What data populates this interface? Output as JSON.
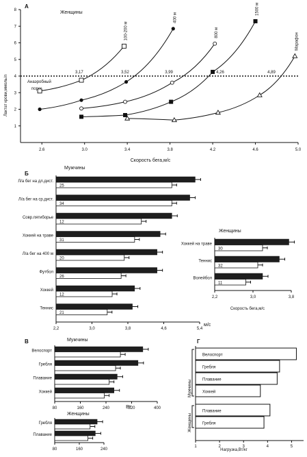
{
  "chart_data": [
    {
      "type": "line",
      "panel_letter": "A",
      "subtitle": "Женщины",
      "xlabel": "Скорость бега,м/с",
      "ylabel": "Лактат крови,ммоль/л",
      "x_ticks": [
        "2.6",
        "3.0",
        "3.4",
        "3.8",
        "4.2",
        "4.6",
        "5.0"
      ],
      "y_ticks": [
        "1",
        "2",
        "3",
        "4",
        "5",
        "6",
        "7",
        "8"
      ],
      "xlim": [
        2.4,
        5.0
      ],
      "ylim": [
        0,
        8
      ],
      "threshold": {
        "value": 4,
        "label_line1": "Анаэробный",
        "label_line2": "порог"
      },
      "threshold_labels": [
        {
          "x": 2.95,
          "text": "3,17"
        },
        {
          "x": 3.38,
          "text": "3,52"
        },
        {
          "x": 3.79,
          "text": "3,99"
        },
        {
          "x": 4.27,
          "text": "4,26"
        },
        {
          "x": 4.75,
          "text": "4,89"
        }
      ],
      "series": [
        {
          "name": "100-200 м",
          "marker": "open-square",
          "x": [
            2.58,
            2.97,
            3.37
          ],
          "y": [
            3.1,
            3.75,
            5.8
          ]
        },
        {
          "name": "400 м",
          "marker": "filled-circle",
          "x": [
            2.58,
            2.97,
            3.39,
            3.83
          ],
          "y": [
            2.0,
            2.55,
            3.65,
            6.85
          ]
        },
        {
          "name": "800 м",
          "marker": "open-circle",
          "x": [
            2.97,
            3.38,
            3.82,
            4.22
          ],
          "y": [
            2.05,
            2.45,
            3.6,
            5.95
          ]
        },
        {
          "name": "1500 м",
          "marker": "filled-square",
          "x": [
            2.97,
            3.38,
            3.81,
            4.2,
            4.6
          ],
          "y": [
            1.55,
            1.65,
            2.45,
            4.25,
            7.3
          ]
        },
        {
          "name": "Марафон",
          "marker": "open-triangle",
          "x": [
            3.4,
            3.84,
            4.25,
            4.64,
            4.97
          ],
          "y": [
            1.45,
            1.35,
            1.8,
            2.85,
            5.2
          ]
        }
      ]
    },
    {
      "type": "bar",
      "panel_letter": "Б",
      "subtitle": "Мужчины",
      "xlabel": "м/с",
      "xlim": [
        2.2,
        5.4
      ],
      "x_ticks": [
        "2,2",
        "3,0",
        "3,8",
        "4,6",
        "5,4"
      ],
      "categories": [
        "Л/а бег на дл.дист.",
        "Л/а бег на ср.дист.",
        "Совр.пятиборье",
        "Хоккей на траве",
        "Л/а бег на 400 м",
        "Футбол",
        "Хоккей",
        "Теннис"
      ],
      "n": [
        "25",
        "34",
        "12",
        "31",
        "20",
        "26",
        "12",
        "21"
      ],
      "series": [
        {
          "name": "",
          "fill": "dark",
          "values": [
            5.3,
            5.18,
            4.78,
            4.52,
            4.45,
            4.45,
            3.95,
            3.9
          ]
        },
        {
          "name": "",
          "fill": "white",
          "values": [
            4.78,
            4.78,
            4.1,
            3.95,
            3.72,
            3.65,
            3.45,
            3.34
          ]
        }
      ]
    },
    {
      "type": "bar",
      "subtitle": "Женщины",
      "xlabel": "Скорость бега,м/с",
      "xlim": [
        2.2,
        3.8
      ],
      "x_ticks": [
        "2,2",
        "3,0",
        "3,8"
      ],
      "categories": [
        "Хоккей на траве",
        "Теннис",
        "Волейбол"
      ],
      "n": [
        "30",
        "32",
        "11"
      ],
      "series": [
        {
          "name": "",
          "fill": "dark",
          "values": [
            3.75,
            3.55,
            3.2
          ]
        },
        {
          "name": "",
          "fill": "white",
          "values": [
            3.2,
            3.1,
            2.85
          ]
        }
      ]
    },
    {
      "type": "bar",
      "panel_letter": "В",
      "subtitle": "Мужчины",
      "xlabel": "Вт",
      "xlim": [
        80,
        400
      ],
      "x_ticks": [
        "80",
        "160",
        "240",
        "320",
        "400"
      ],
      "categories": [
        "Велоспорт",
        "Гребля",
        "Плавание",
        "Хоккей"
      ],
      "series": [
        {
          "name": "",
          "fill": "dark",
          "values": [
            355,
            340,
            275,
            265
          ]
        },
        {
          "name": "",
          "fill": "white",
          "values": [
            285,
            270,
            250,
            235
          ]
        }
      ]
    },
    {
      "type": "bar",
      "subtitle": "Женщины",
      "xlim": [
        80,
        240
      ],
      "x_ticks": [
        "80",
        "160",
        "240"
      ],
      "categories": [
        "Гребля",
        "Плавание"
      ],
      "series": [
        {
          "name": "",
          "fill": "dark",
          "values": [
            218,
            212
          ]
        },
        {
          "name": "",
          "fill": "white",
          "values": [
            195,
            188
          ]
        }
      ]
    },
    {
      "type": "bar",
      "panel_letter": "Г",
      "xlabel": "Нагрузка,Вт/кг",
      "xlim": [
        1,
        5.5
      ],
      "x_ticks": [
        "1",
        "2",
        "3",
        "4",
        "5"
      ],
      "groups": [
        {
          "label": "Мужчины",
          "categories": [
            "Велоспорт",
            "Гребля",
            "Плавание",
            "Хоккей"
          ],
          "values": [
            5.2,
            4.5,
            4.4,
            3.7
          ]
        },
        {
          "label": "Женщины",
          "categories": [
            "Плавание",
            "Гребля"
          ],
          "values": [
            4.1,
            3.85
          ]
        }
      ]
    }
  ]
}
